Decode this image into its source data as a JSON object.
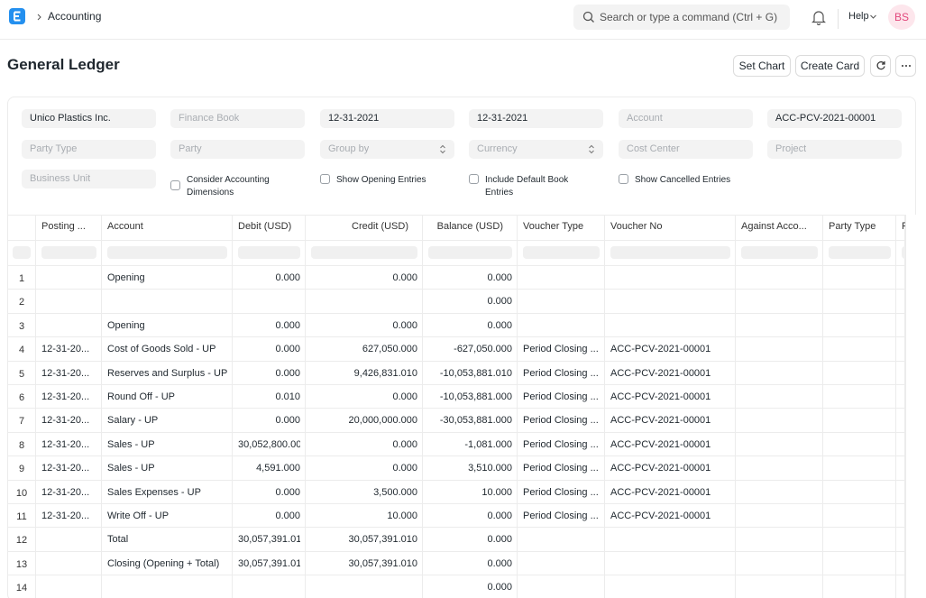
{
  "navbar": {
    "breadcrumb": "Accounting",
    "search_placeholder": "Search or type a command (Ctrl + G)",
    "help": "Help",
    "avatar": "BS"
  },
  "page": {
    "title": "General Ledger",
    "buttons": [
      "Set Chart",
      "Create Card"
    ]
  },
  "filters": {
    "fields": [
      {
        "text": "Unico Plastics Inc.",
        "kind": "value"
      },
      {
        "text": "Finance Book",
        "kind": "placeholder"
      },
      {
        "text": "12-31-2021",
        "kind": "value"
      },
      {
        "text": "12-31-2021",
        "kind": "value"
      },
      {
        "text": "Account",
        "kind": "placeholder"
      },
      {
        "text": "ACC-PCV-2021-00001",
        "kind": "value"
      },
      {
        "text": "Party Type",
        "kind": "placeholder"
      },
      {
        "text": "Party",
        "kind": "placeholder"
      },
      {
        "text": "Group by",
        "kind": "select"
      },
      {
        "text": "Currency",
        "kind": "select"
      },
      {
        "text": "Cost Center",
        "kind": "placeholder"
      },
      {
        "text": "Project",
        "kind": "placeholder"
      },
      {
        "text": "Business Unit",
        "kind": "placeholder"
      }
    ],
    "checkboxes": [
      "Consider Accounting Dimensions",
      "Show Opening Entries",
      "Include Default Book Entries",
      "Show Cancelled Entries"
    ]
  },
  "table": {
    "columns": [
      null,
      "Posting ...",
      "Account",
      "Debit (USD)",
      "Credit (USD)",
      "Balance (USD)",
      "Voucher Type",
      "Voucher No",
      "Against Acco...",
      "Party Type",
      "Pa"
    ],
    "rows": [
      [
        "1",
        null,
        "Opening",
        "0.000",
        "0.000",
        "0.000"
      ],
      [
        "2",
        null,
        null,
        null,
        null,
        "0.000"
      ],
      [
        "3",
        null,
        "Opening",
        "0.000",
        "0.000",
        "0.000"
      ],
      [
        "4",
        "12-31-20...",
        "Cost of Goods Sold - UP",
        "0.000",
        "627,050.000",
        "-627,050.000",
        "Period Closing ...",
        "ACC-PCV-2021-00001"
      ],
      [
        "5",
        "12-31-20...",
        "Reserves and Surplus - UP",
        "0.000",
        "9,426,831.010",
        "-10,053,881.010",
        "Period Closing ...",
        "ACC-PCV-2021-00001"
      ],
      [
        "6",
        "12-31-20...",
        "Round Off - UP",
        "0.010",
        "0.000",
        "-10,053,881.000",
        "Period Closing ...",
        "ACC-PCV-2021-00001"
      ],
      [
        "7",
        "12-31-20...",
        "Salary - UP",
        "0.000",
        "20,000,000.000",
        "-30,053,881.000",
        "Period Closing ...",
        "ACC-PCV-2021-00001"
      ],
      [
        "8",
        "12-31-20...",
        "Sales - UP",
        "30,052,800.00",
        "0.000",
        "-1,081.000",
        "Period Closing ...",
        "ACC-PCV-2021-00001"
      ],
      [
        "9",
        "12-31-20...",
        "Sales - UP",
        "4,591.000",
        "0.000",
        "3,510.000",
        "Period Closing ...",
        "ACC-PCV-2021-00001"
      ],
      [
        "10",
        "12-31-20...",
        "Sales Expenses - UP",
        "0.000",
        "3,500.000",
        "10.000",
        "Period Closing ...",
        "ACC-PCV-2021-00001"
      ],
      [
        "11",
        "12-31-20...",
        "Write Off - UP",
        "0.000",
        "10.000",
        "0.000",
        "Period Closing ...",
        "ACC-PCV-2021-00001"
      ],
      [
        "12",
        null,
        "Total",
        "30,057,391.01",
        "30,057,391.010",
        "0.000"
      ],
      [
        "13",
        null,
        "Closing (Opening + Total)",
        "30,057,391.01",
        "30,057,391.010",
        "0.000"
      ],
      [
        "14",
        null,
        null,
        null,
        null,
        "0.000"
      ]
    ]
  }
}
